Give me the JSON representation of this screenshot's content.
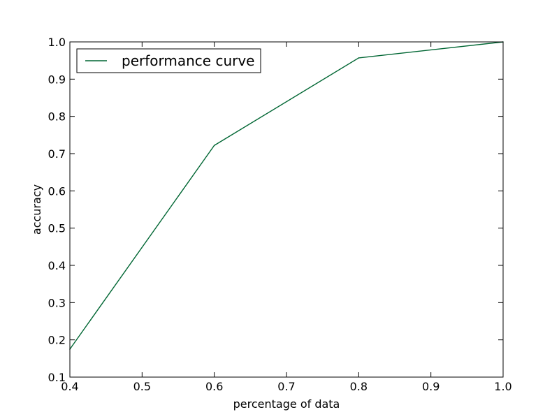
{
  "chart_data": {
    "type": "line",
    "title": "",
    "xlabel": "percentage of data",
    "ylabel": "accuracy",
    "xlim": [
      0.4,
      1.0
    ],
    "ylim": [
      0.1,
      1.0
    ],
    "x_ticks": [
      "0.4",
      "0.5",
      "0.6",
      "0.7",
      "0.8",
      "0.9",
      "1.0"
    ],
    "y_ticks": [
      "0.1",
      "0.2",
      "0.3",
      "0.4",
      "0.5",
      "0.6",
      "0.7",
      "0.8",
      "0.9",
      "1.0"
    ],
    "grid": false,
    "legend_position": "top-left",
    "series": [
      {
        "name": "performance curve",
        "color": "#006633",
        "points": [
          {
            "x": 0.4,
            "y": 0.175
          },
          {
            "x": 0.6,
            "y": 0.722
          },
          {
            "x": 0.8,
            "y": 0.957
          },
          {
            "x": 1.0,
            "y": 1.0
          }
        ]
      }
    ]
  }
}
